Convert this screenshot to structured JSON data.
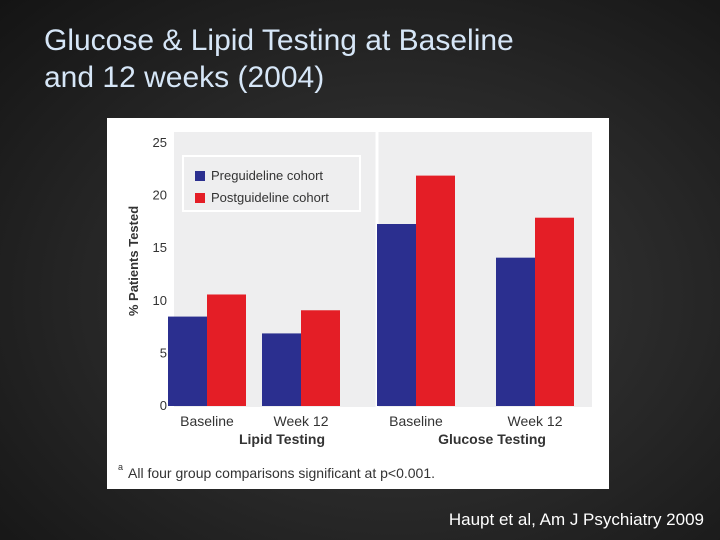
{
  "slide": {
    "title_line1": "Glucose & Lipid Testing at Baseline",
    "title_line2": "and 12 weeks (2004)",
    "citation": "Haupt et al, Am J Psychiatry 2009"
  },
  "chart_data": {
    "type": "bar",
    "ylabel": "% Patients Tested",
    "ylim": [
      0,
      25
    ],
    "yticks": [
      0,
      5,
      10,
      15,
      20,
      25
    ],
    "grid": false,
    "legend_position": "top-left",
    "groups": [
      {
        "label": "Lipid Testing",
        "categories": [
          "Baseline",
          "Week 12"
        ]
      },
      {
        "label": "Glucose Testing",
        "categories": [
          "Baseline",
          "Week 12"
        ]
      }
    ],
    "categories": [
      "Baseline",
      "Week 12",
      "Baseline",
      "Week 12"
    ],
    "series": [
      {
        "name": "Preguideline cohort",
        "color": "#2b2f8f",
        "values": [
          8.5,
          6.9,
          17.3,
          14.1
        ]
      },
      {
        "name": "Postguideline cohort",
        "color": "#e41e26",
        "values": [
          10.6,
          9.1,
          21.9,
          17.9
        ]
      }
    ],
    "footnote_marker": "a",
    "footnote": "All four group comparisons significant at p<0.001."
  }
}
